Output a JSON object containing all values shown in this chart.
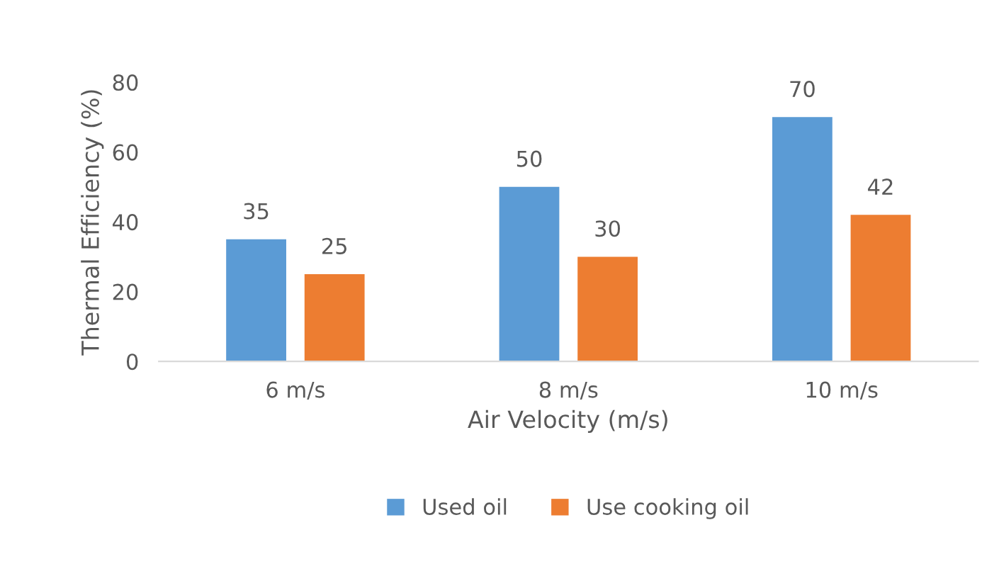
{
  "chart_data": {
    "type": "bar",
    "xlabel": "Air Velocity (m/s)",
    "ylabel": "Thermal Efficiency (%)",
    "categories": [
      "6 m/s",
      "8 m/s",
      "10 m/s"
    ],
    "series": [
      {
        "name": "Used oil",
        "color": "#5b9bd5",
        "values": [
          35,
          50,
          70
        ]
      },
      {
        "name": "Use cooking oil",
        "color": "#ed7d31",
        "values": [
          25,
          30,
          42
        ]
      }
    ],
    "ylim": [
      0,
      80
    ],
    "yticks": [
      0,
      20,
      40,
      60,
      80
    ],
    "grid": false,
    "legend": "bottom",
    "data_labels": true
  }
}
